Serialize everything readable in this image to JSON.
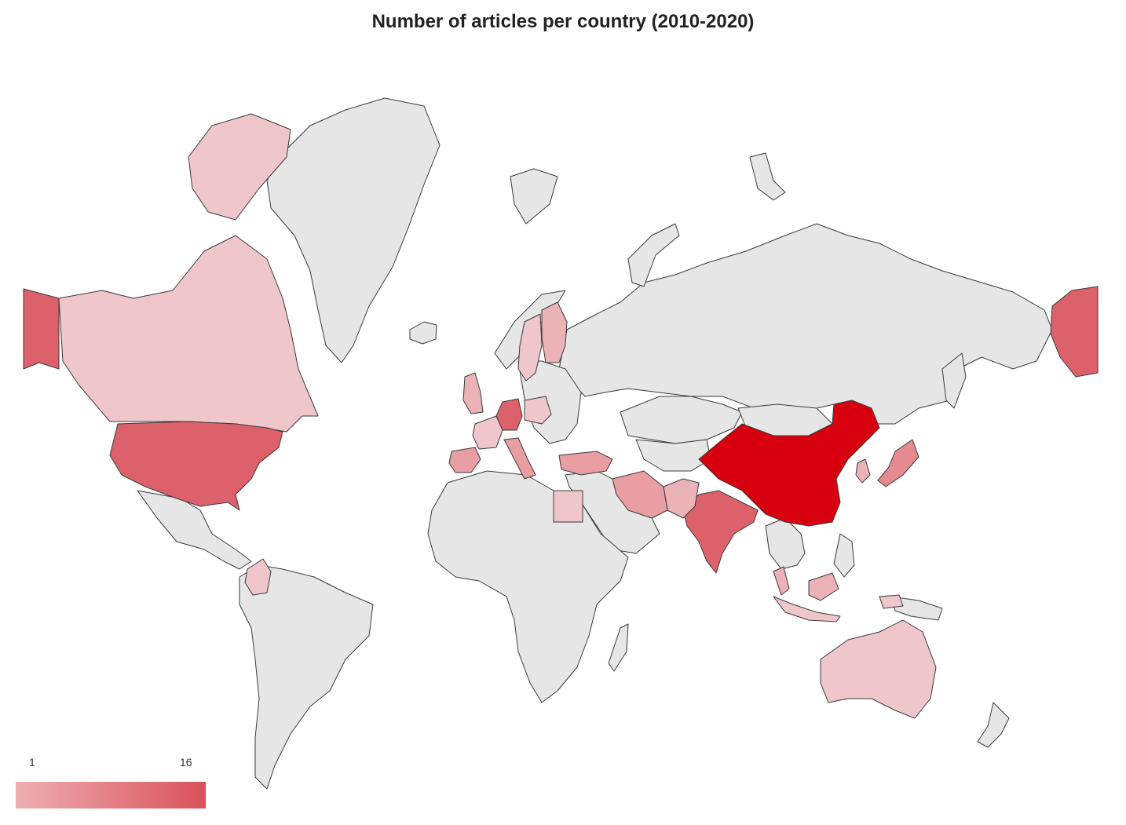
{
  "title": "Number of articles per country (2010-2020)",
  "legend": {
    "min_label": "1",
    "max_label": "16",
    "min": 1,
    "max": 16
  },
  "colors": {
    "no_data": "#e6e6e6",
    "scale_low": "#eeb0b4",
    "scale_high": "#d9505a",
    "max_value": "#d7000f",
    "border": "#3a3a3a"
  },
  "countries": [
    {
      "id": "china",
      "value": 16
    },
    {
      "id": "usa",
      "value": 7
    },
    {
      "id": "india",
      "value": 7
    },
    {
      "id": "germany",
      "value": 7
    },
    {
      "id": "japan",
      "value": 5
    },
    {
      "id": "canada",
      "value": 2
    },
    {
      "id": "australia",
      "value": 2
    },
    {
      "id": "spain",
      "value": 4
    },
    {
      "id": "italy",
      "value": 4
    },
    {
      "id": "iran",
      "value": 4
    },
    {
      "id": "turkey",
      "value": 4
    },
    {
      "id": "uk",
      "value": 3
    },
    {
      "id": "france",
      "value": 2
    },
    {
      "id": "finland",
      "value": 3
    },
    {
      "id": "sweden",
      "value": 2
    },
    {
      "id": "poland",
      "value": 2
    },
    {
      "id": "egypt",
      "value": 2
    },
    {
      "id": "colombia",
      "value": 2
    },
    {
      "id": "pakistan",
      "value": 3
    },
    {
      "id": "malaysia",
      "value": 3
    },
    {
      "id": "korea",
      "value": 3
    },
    {
      "id": "indonesia",
      "value": 2
    }
  ]
}
